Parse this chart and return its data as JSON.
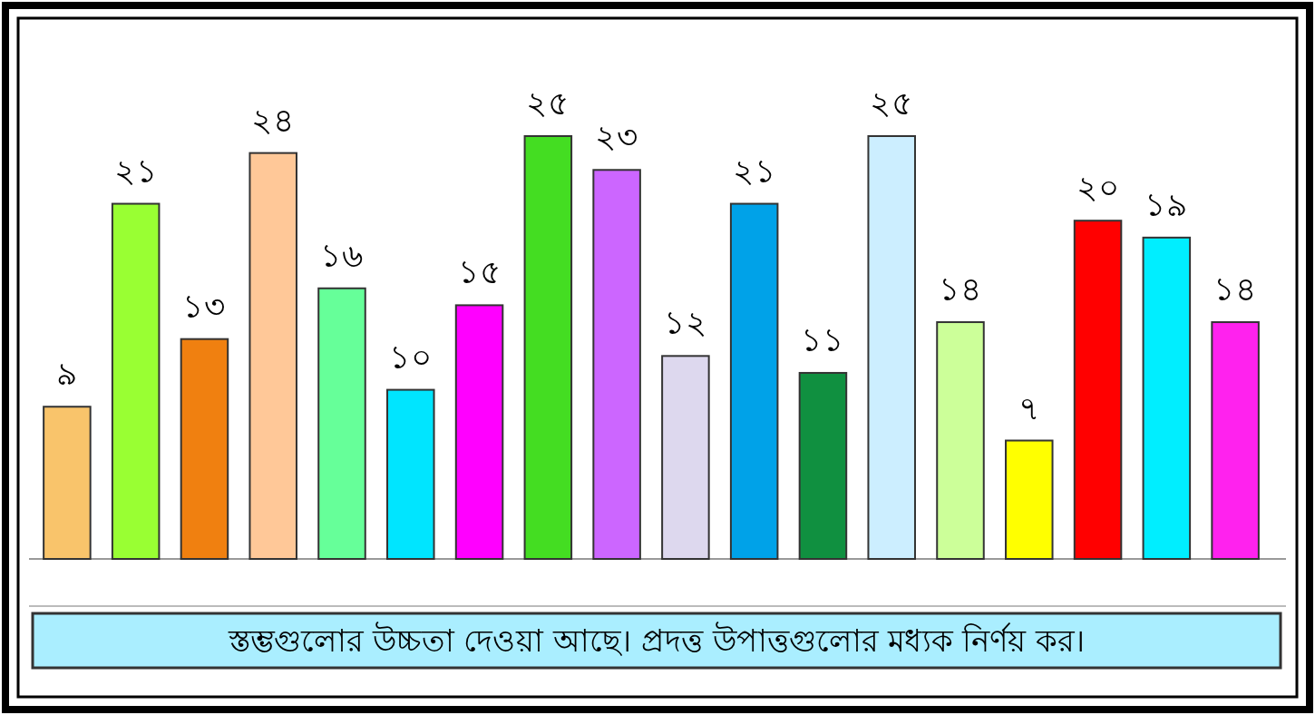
{
  "chart_data": {
    "type": "bar",
    "categories": [
      null,
      null,
      null,
      null,
      null,
      null,
      null,
      null,
      null,
      null,
      null,
      null,
      null,
      null,
      null,
      null,
      null,
      null
    ],
    "values": [
      9,
      21,
      13,
      24,
      16,
      10,
      15,
      25,
      23,
      12,
      21,
      11,
      25,
      14,
      7,
      20,
      19,
      14
    ],
    "value_labels": [
      "৯",
      "২১",
      "১৩",
      "২৪",
      "১৬",
      "১০",
      "১৫",
      "২৫",
      "২৩",
      "১২",
      "২১",
      "১১",
      "২৫",
      "১৪",
      "৭",
      "২০",
      "১৯",
      "১৪"
    ],
    "colors": [
      "#f9c46b",
      "#99ff33",
      "#f08010",
      "#ffc898",
      "#66ff99",
      "#00e5ff",
      "#ff00ff",
      "#44dd22",
      "#cc66ff",
      "#ddd8ee",
      "#00a2e8",
      "#109040",
      "#cceeff",
      "#ccff99",
      "#ffff00",
      "#ff0000",
      "#00eeff",
      "#ff22ee"
    ],
    "annotations": [
      "স্তম্ভগুলোর উচ্চতা দেওয়া আছে। প্রদত্ত উপাত্তগুলোর মধ্যক নির্ণয় কর।"
    ]
  }
}
